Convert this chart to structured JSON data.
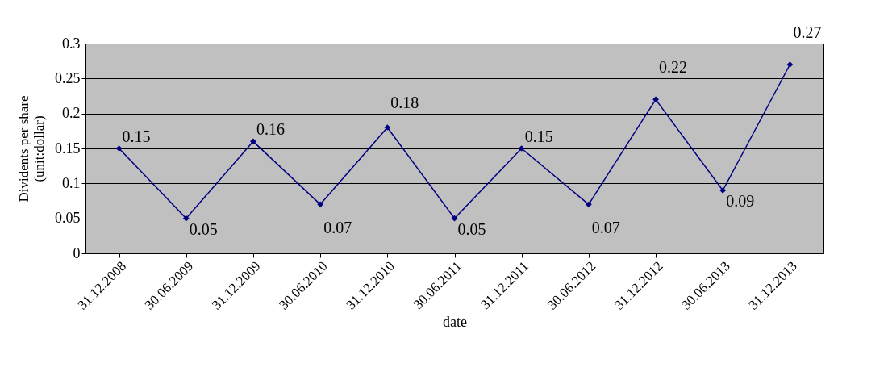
{
  "chart_data": {
    "type": "line",
    "xlabel": "date",
    "ylabel": "Dividents per share\n(unit:dollar)",
    "categories": [
      "31.12.2008",
      "30.06.2009",
      "31.12.2009",
      "30.06.2010",
      "31.12.2010",
      "30.06.2011",
      "31.12.2011",
      "30.06.2012",
      "31.12.2012",
      "30.06.2013",
      "31.12.2013"
    ],
    "series": [
      {
        "color": "#000080",
        "values": [
          0.15,
          0.05,
          0.16,
          0.07,
          0.18,
          0.05,
          0.15,
          0.07,
          0.22,
          0.09,
          0.27
        ]
      }
    ],
    "ylim": [
      0,
      0.3
    ],
    "yticks": [
      0,
      0.05,
      0.1,
      0.15,
      0.2,
      0.25,
      0.3
    ],
    "grid": "y",
    "marker": "diamond",
    "line_style": "solid",
    "data_labels": true
  }
}
